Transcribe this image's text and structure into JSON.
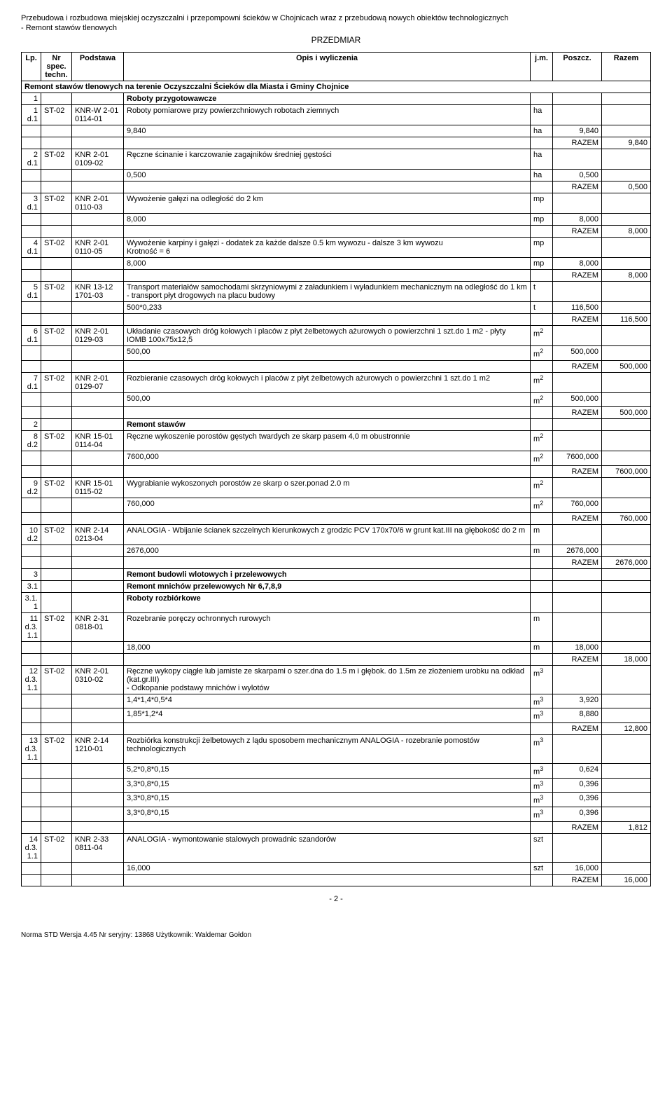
{
  "header": {
    "line1": "Przebudowa i rozbudowa miejskiej oczyszczalni i przepompowni ścieków w Chojnicach wraz z przebudową nowych obiektów technologicznych",
    "line2": "- Remont stawów tlenowych",
    "center": "PRZEDMIAR"
  },
  "columns": {
    "lp": "Lp.",
    "nr": "Nr spec. techn.",
    "podstawa": "Podstawa",
    "opis": "Opis i wyliczenia",
    "jm": "j.m.",
    "poszcz": "Poszcz.",
    "razem": "Razem"
  },
  "section_title": "Remont stawów tlenowych na terenie Oczyszczalni Ścieków dla Miasta i Gminy Chojnice",
  "rows": [
    {
      "type": "group",
      "lp": "1",
      "opis": "Roboty przygotowawcze"
    },
    {
      "type": "item",
      "lp": "1 d.1",
      "nr": "ST-02",
      "pod": "KNR-W 2-01 0114-01",
      "opis": "Roboty pomiarowe przy powierzchniowych robotach ziemnych",
      "jm": "ha"
    },
    {
      "type": "calc",
      "opis": "9,840",
      "jm": "ha",
      "poszcz": "9,840"
    },
    {
      "type": "razem",
      "label": "RAZEM",
      "val": "9,840"
    },
    {
      "type": "item",
      "lp": "2 d.1",
      "nr": "ST-02",
      "pod": "KNR 2-01 0109-02",
      "opis": "Ręczne ścinanie i karczowanie zagajników średniej gęstości",
      "jm": "ha"
    },
    {
      "type": "calc",
      "opis": "0,500",
      "jm": "ha",
      "poszcz": "0,500"
    },
    {
      "type": "razem",
      "label": "RAZEM",
      "val": "0,500"
    },
    {
      "type": "item",
      "lp": "3 d.1",
      "nr": "ST-02",
      "pod": "KNR 2-01 0110-03",
      "opis": "Wywożenie gałęzi na odległość do 2 km",
      "jm": "mp"
    },
    {
      "type": "calc",
      "opis": "8,000",
      "jm": "mp",
      "poszcz": "8,000"
    },
    {
      "type": "razem",
      "label": "RAZEM",
      "val": "8,000"
    },
    {
      "type": "item",
      "lp": "4 d.1",
      "nr": "ST-02",
      "pod": "KNR 2-01 0110-05",
      "opis": "Wywożenie karpiny i gałęzi - dodatek za każde dalsze 0.5 km wywozu - dalsze 3 km wywozu\nKrotność = 6",
      "jm": "mp"
    },
    {
      "type": "calc",
      "opis": "8,000",
      "jm": "mp",
      "poszcz": "8,000"
    },
    {
      "type": "razem",
      "label": "RAZEM",
      "val": "8,000"
    },
    {
      "type": "item",
      "lp": "5 d.1",
      "nr": "ST-02",
      "pod": "KNR 13-12 1701-03",
      "opis": "Transport materiałów samochodami skrzyniowymi z załadunkiem i wyładunkiem mechanicznym na odległość do 1 km - transport płyt drogowych na placu budowy",
      "jm": "t"
    },
    {
      "type": "calc",
      "opis": "500*0,233",
      "jm": "t",
      "poszcz": "116,500"
    },
    {
      "type": "razem",
      "label": "RAZEM",
      "val": "116,500"
    },
    {
      "type": "item",
      "lp": "6 d.1",
      "nr": "ST-02",
      "pod": "KNR 2-01 0129-03",
      "opis": "Układanie czasowych dróg kołowych i placów z płyt żelbetowych ażurowych o powierzchni 1 szt.do 1 m2 - płyty IOMB 100x75x12,5",
      "jm": "m2"
    },
    {
      "type": "calc",
      "opis": "500,00",
      "jm": "m2",
      "poszcz": "500,000"
    },
    {
      "type": "razem",
      "label": "RAZEM",
      "val": "500,000"
    },
    {
      "type": "item",
      "lp": "7 d.1",
      "nr": "ST-02",
      "pod": "KNR 2-01 0129-07",
      "opis": "Rozbieranie czasowych dróg kołowych i placów z płyt żelbetowych ażurowych o powierzchni 1 szt.do 1 m2",
      "jm": "m2"
    },
    {
      "type": "calc",
      "opis": "500,00",
      "jm": "m2",
      "poszcz": "500,000"
    },
    {
      "type": "razem",
      "label": "RAZEM",
      "val": "500,000"
    },
    {
      "type": "group",
      "lp": "2",
      "opis": "Remont stawów"
    },
    {
      "type": "item",
      "lp": "8 d.2",
      "nr": "ST-02",
      "pod": "KNR 15-01 0114-04",
      "opis": "Ręczne wykoszenie porostów gęstych twardych ze skarp pasem 4,0 m obustronnie",
      "jm": "m2"
    },
    {
      "type": "calc",
      "opis": "7600,000",
      "jm": "m2",
      "poszcz": "7600,000"
    },
    {
      "type": "razem",
      "label": "RAZEM",
      "val": "7600,000"
    },
    {
      "type": "item",
      "lp": "9 d.2",
      "nr": "ST-02",
      "pod": "KNR 15-01 0115-02",
      "opis": "Wygrabianie wykoszonych porostów ze skarp o szer.ponad 2.0 m",
      "jm": "m2"
    },
    {
      "type": "calc",
      "opis": "760,000",
      "jm": "m2",
      "poszcz": "760,000"
    },
    {
      "type": "razem",
      "label": "RAZEM",
      "val": "760,000"
    },
    {
      "type": "item",
      "lp": "10 d.2",
      "nr": "ST-02",
      "pod": "KNR 2-14 0213-04",
      "opis": "ANALOGIA - Wbijanie ścianek szczelnych kierunkowych z grodzic PCV 170x70/6  w grunt kat.III na głębokość do 2 m",
      "jm": "m"
    },
    {
      "type": "calc",
      "opis": "2676,000",
      "jm": "m",
      "poszcz": "2676,000"
    },
    {
      "type": "razem",
      "label": "RAZEM",
      "val": "2676,000"
    },
    {
      "type": "group",
      "lp": "3",
      "opis": "Remont budowli wlotowych i przelewowych"
    },
    {
      "type": "group",
      "lp": "3.1",
      "opis": "Remont mnichów przelewowych Nr 6,7,8,9"
    },
    {
      "type": "group",
      "lp": "3.1.1",
      "opis": "Roboty rozbiórkowe"
    },
    {
      "type": "item",
      "lp": "11 d.3.1.1",
      "nr": "ST-02",
      "pod": "KNR 2-31 0818-01",
      "opis": "Rozebranie poręczy ochronnych rurowych",
      "jm": "m"
    },
    {
      "type": "calc",
      "opis": "18,000",
      "jm": "m",
      "poszcz": "18,000"
    },
    {
      "type": "razem",
      "label": "RAZEM",
      "val": "18,000"
    },
    {
      "type": "item",
      "lp": "12 d.3.1.1",
      "nr": "ST-02",
      "pod": "KNR 2-01 0310-02",
      "opis": "Ręczne wykopy ciągłe lub jamiste ze skarpami o szer.dna do 1.5 m i głębok. do 1.5m ze złożeniem urobku na odkład (kat.gr.III)\n- Odkopanie podstawy mnichów i wylotów",
      "jm": "m3"
    },
    {
      "type": "calc",
      "opis": "1,4*1,4*0,5*4",
      "jm": "m3",
      "poszcz": "3,920"
    },
    {
      "type": "calc",
      "opis": "1,85*1,2*4",
      "jm": "m3",
      "poszcz": "8,880"
    },
    {
      "type": "razem",
      "label": "RAZEM",
      "val": "12,800"
    },
    {
      "type": "item",
      "lp": "13 d.3.1.1",
      "nr": "ST-02",
      "pod": "KNR 2-14 1210-01",
      "opis": "Rozbiórka konstrukcji żelbetowych z lądu sposobem mechanicznym ANALOGIA - rozebranie pomostów technologicznych",
      "jm": "m3"
    },
    {
      "type": "calc",
      "opis": "5,2*0,8*0,15",
      "jm": "m3",
      "poszcz": "0,624"
    },
    {
      "type": "calc",
      "opis": "3,3*0,8*0,15",
      "jm": "m3",
      "poszcz": "0,396"
    },
    {
      "type": "calc",
      "opis": "3,3*0,8*0,15",
      "jm": "m3",
      "poszcz": "0,396"
    },
    {
      "type": "calc",
      "opis": "3,3*0,8*0,15",
      "jm": "m3",
      "poszcz": "0,396"
    },
    {
      "type": "razem",
      "label": "RAZEM",
      "val": "1,812"
    },
    {
      "type": "item",
      "lp": "14 d.3.1.1",
      "nr": "ST-02",
      "pod": "KNR 2-33 0811-04",
      "opis": "ANALOGIA - wymontowanie stalowych prowadnic szandorów",
      "jm": "szt"
    },
    {
      "type": "calc",
      "opis": "16,000",
      "jm": "szt",
      "poszcz": "16,000"
    },
    {
      "type": "razem",
      "label": "RAZEM",
      "val": "16,000"
    }
  ],
  "footer": {
    "page": "- 2 -",
    "bottom": "Norma STD Wersja 4.45 Nr seryjny: 13868 Użytkownik: Waldemar Gołdon"
  },
  "sup_map": {
    "m2": "m²",
    "m3": "m³"
  }
}
